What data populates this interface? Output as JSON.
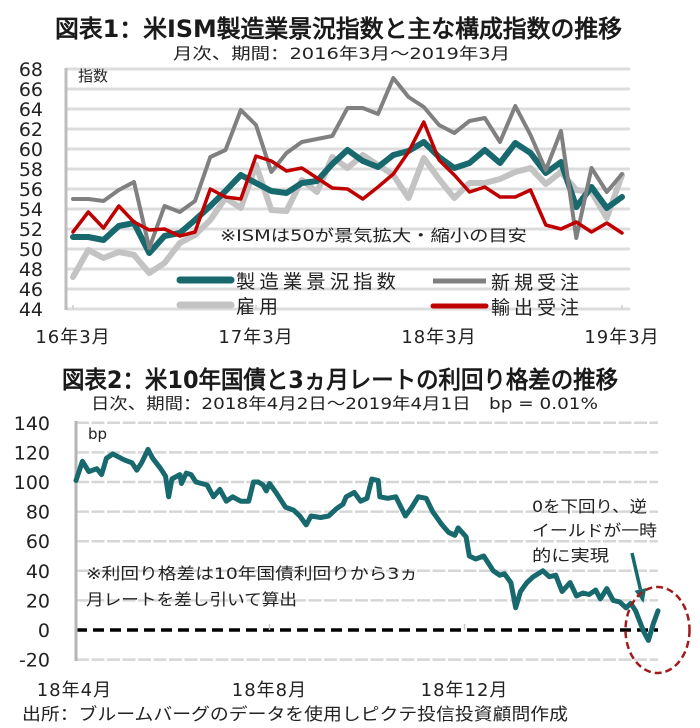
{
  "chart_data": [
    {
      "type": "line",
      "title": "図表1：米ISM製造業景況指数と主な構成指数の推移",
      "subtitle": "月次、期間：2016年3月～2019年3月",
      "xlabel": "",
      "ylabel": "指数",
      "ylim": [
        44,
        68
      ],
      "yticks": [
        44,
        46,
        48,
        50,
        52,
        54,
        56,
        58,
        60,
        62,
        64,
        66,
        68
      ],
      "grid": true,
      "legend_position": "bottom",
      "annotation": "※ISMは50が景気拡大・縮小の目安",
      "x": [
        "2016-03",
        "2016-04",
        "2016-05",
        "2016-06",
        "2016-07",
        "2016-08",
        "2016-09",
        "2016-10",
        "2016-11",
        "2016-12",
        "2017-01",
        "2017-02",
        "2017-03",
        "2017-04",
        "2017-05",
        "2017-06",
        "2017-07",
        "2017-08",
        "2017-09",
        "2017-10",
        "2017-11",
        "2017-12",
        "2018-01",
        "2018-02",
        "2018-03",
        "2018-04",
        "2018-05",
        "2018-06",
        "2018-07",
        "2018-08",
        "2018-09",
        "2018-10",
        "2018-11",
        "2018-12",
        "2019-01",
        "2019-02",
        "2019-03"
      ],
      "xticks": [
        {
          "x": "2016-03",
          "label": "16年3月"
        },
        {
          "x": "2017-03",
          "label": "17年3月"
        },
        {
          "x": "2018-03",
          "label": "18年3月"
        },
        {
          "x": "2019-03",
          "label": "19年3月"
        }
      ],
      "series": [
        {
          "name": "製造業景況指数",
          "color": "#17696d",
          "values": [
            51.2,
            51.2,
            50.9,
            52.3,
            52.6,
            49.6,
            51.3,
            51.6,
            52.9,
            54.3,
            55.8,
            57.4,
            56.6,
            55.8,
            55.6,
            56.6,
            56.8,
            58.5,
            59.9,
            58.8,
            58.2,
            59.4,
            59.8,
            60.7,
            59.2,
            58.1,
            58.6,
            59.9,
            58.6,
            60.6,
            59.6,
            57.6,
            58.7,
            54.2,
            56.2,
            54.1,
            55.2
          ]
        },
        {
          "name": "新規受注",
          "color": "#808080",
          "values": [
            55.0,
            55.0,
            54.8,
            55.9,
            56.7,
            50.1,
            54.3,
            53.7,
            54.8,
            59.2,
            59.9,
            63.9,
            62.4,
            57.7,
            59.6,
            60.7,
            61.0,
            61.3,
            64.1,
            64.1,
            63.5,
            67.1,
            65.2,
            64.2,
            62.4,
            61.6,
            62.8,
            63.1,
            60.7,
            64.3,
            61.4,
            57.9,
            61.8,
            51.1,
            58.1,
            55.7,
            57.5
          ]
        },
        {
          "name": "雇用",
          "color": "#c3c3c3",
          "values": [
            47.2,
            49.9,
            49.1,
            49.7,
            49.4,
            47.6,
            48.6,
            50.6,
            51.4,
            52.9,
            55.1,
            54.1,
            58.4,
            53.9,
            53.8,
            56.9,
            55.7,
            59.2,
            58.1,
            59.4,
            58.4,
            57.4,
            55.1,
            59.1,
            57.0,
            55.1,
            56.6,
            56.6,
            57.0,
            57.7,
            58.1,
            56.5,
            57.7,
            55.9,
            55.7,
            53.1,
            57.4
          ]
        },
        {
          "name": "輸出受注",
          "color": "#c00000",
          "values": [
            51.7,
            53.7,
            52.1,
            54.3,
            52.7,
            51.9,
            52.0,
            51.3,
            51.7,
            56.0,
            55.2,
            55.0,
            59.3,
            58.8,
            57.8,
            58.1,
            57.1,
            56.1,
            56.0,
            55.0,
            56.2,
            57.5,
            59.7,
            62.7,
            58.9,
            57.4,
            55.7,
            56.2,
            55.2,
            55.2,
            55.9,
            52.4,
            52.0,
            52.7,
            51.7,
            52.6,
            51.6
          ]
        }
      ]
    },
    {
      "type": "line",
      "title": "図表2：米10年国債と3ヵ月レートの利回り格差の推移",
      "subtitle": "日次、期間：2018年4月2日～2019年4月1日　bp = 0.01%",
      "xlabel": "",
      "ylabel": "bp",
      "ylim": [
        -20,
        140
      ],
      "yticks": [
        -20,
        0,
        20,
        40,
        60,
        80,
        100,
        120,
        140
      ],
      "xlim": [
        "2018-04-02",
        "2019-04-01"
      ],
      "grid": true,
      "xticks": [
        {
          "x": "2018-04-01",
          "label": "18年4月"
        },
        {
          "x": "2018-08-01",
          "label": "18年8月"
        },
        {
          "x": "2018-12-01",
          "label": "18年12月"
        }
      ],
      "reference_line": {
        "y": 0,
        "style": "dashed",
        "color": "#000000"
      },
      "note": [
        "※利回り格差は10年国債利回りから3ヵ",
        "月レートを差し引いて算出"
      ],
      "annotation": [
        "0を下回り、逆",
        "イールドが一時",
        "的に実現"
      ],
      "highlight_color": "#a01c1c",
      "series": [
        {
          "color": "#17696d",
          "x": [
            "2018-04-02",
            "2018-04-06",
            "2018-04-10",
            "2018-04-15",
            "2018-04-18",
            "2018-04-21",
            "2018-04-25",
            "2018-05-02",
            "2018-05-07",
            "2018-05-10",
            "2018-05-13",
            "2018-05-17",
            "2018-05-20",
            "2018-05-25",
            "2018-05-28",
            "2018-05-30",
            "2018-06-01",
            "2018-06-06",
            "2018-06-07",
            "2018-06-10",
            "2018-06-13",
            "2018-06-16",
            "2018-06-23",
            "2018-06-27",
            "2018-07-01",
            "2018-07-05",
            "2018-07-09",
            "2018-07-14",
            "2018-07-19",
            "2018-07-22",
            "2018-07-25",
            "2018-07-28",
            "2018-07-30",
            "2018-08-01",
            "2018-08-05",
            "2018-08-11",
            "2018-08-16",
            "2018-08-20",
            "2018-08-24",
            "2018-08-27",
            "2018-09-02",
            "2018-09-07",
            "2018-09-12",
            "2018-09-16",
            "2018-09-18",
            "2018-09-23",
            "2018-09-27",
            "2018-10-01",
            "2018-10-04",
            "2018-10-08",
            "2018-10-09",
            "2018-10-14",
            "2018-10-19",
            "2018-10-25",
            "2018-10-29",
            "2018-11-02",
            "2018-11-07",
            "2018-11-11",
            "2018-11-17",
            "2018-11-21",
            "2018-11-25",
            "2018-11-27",
            "2018-12-02",
            "2018-12-04",
            "2018-12-08",
            "2018-12-13",
            "2018-12-16",
            "2018-12-19",
            "2018-12-23",
            "2018-12-26",
            "2018-12-30",
            "2019-01-02",
            "2019-01-05",
            "2019-01-09",
            "2019-01-13",
            "2019-01-19",
            "2019-01-23",
            "2019-01-27",
            "2019-01-31",
            "2019-02-05",
            "2019-02-09",
            "2019-02-13",
            "2019-02-17",
            "2019-02-21",
            "2019-02-24",
            "2019-02-28",
            "2019-03-04",
            "2019-03-08",
            "2019-03-12",
            "2019-03-15",
            "2019-03-18",
            "2019-03-23",
            "2019-03-26",
            "2019-03-29",
            "2019-04-01"
          ],
          "values": [
            101,
            114,
            107,
            109,
            105,
            116,
            119,
            115,
            113,
            108,
            113,
            122,
            116,
            109,
            104,
            90,
            102,
            105,
            99,
            106,
            105,
            100,
            98,
            90,
            95,
            87,
            90,
            87,
            87,
            100,
            100,
            98,
            94,
            99,
            93,
            83,
            81,
            77,
            71,
            77,
            76,
            77,
            82,
            85,
            90,
            93,
            87,
            89,
            102,
            101,
            90,
            89,
            90,
            77,
            83,
            90,
            89,
            80,
            71,
            66,
            64,
            69,
            63,
            50,
            48,
            50,
            45,
            40,
            37,
            38,
            32,
            15,
            26,
            32,
            36,
            40,
            36,
            37,
            26,
            32,
            23,
            25,
            24,
            27,
            21,
            28,
            20,
            19,
            15,
            18,
            13,
            -1,
            -7,
            4,
            13
          ]
        }
      ]
    }
  ],
  "footer": "出所：ブルームバーグのデータを使用しピクテ投信投資顧問作成"
}
